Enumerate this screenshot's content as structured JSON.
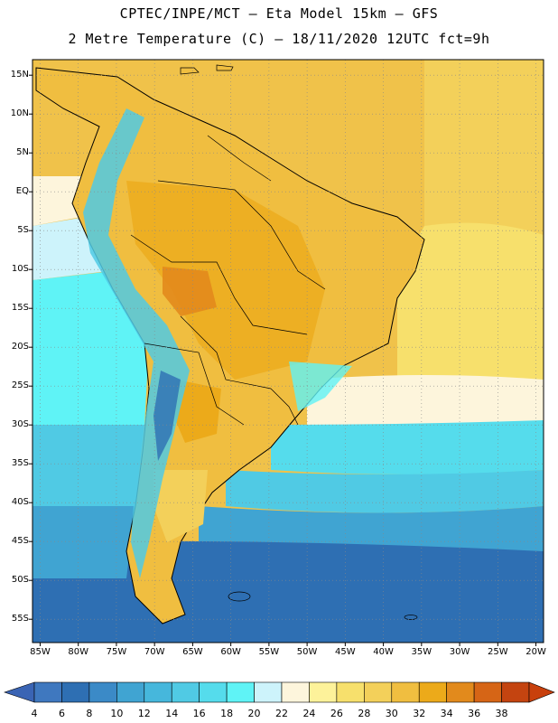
{
  "header": {
    "line1": "CPTEC/INPE/MCT –  Eta Model 15km – GFS",
    "line2": "2 Metre Temperature (C) – 18/11/2020 12UTC fct=9h"
  },
  "map": {
    "lat_labels": [
      "15N",
      "10N",
      "5N",
      "EQ",
      "5S",
      "10S",
      "15S",
      "20S",
      "25S",
      "30S",
      "35S",
      "40S",
      "45S",
      "50S",
      "55S"
    ],
    "lon_labels": [
      "85W",
      "80W",
      "75W",
      "70W",
      "65W",
      "60W",
      "55W",
      "50W",
      "45W",
      "40W",
      "35W",
      "30W",
      "25W",
      "20W"
    ],
    "lat_range": [
      -58,
      17
    ],
    "lon_range": [
      -86,
      -19
    ]
  },
  "legend": {
    "labels": [
      "4",
      "6",
      "8",
      "10",
      "12",
      "14",
      "16",
      "18",
      "20",
      "22",
      "24",
      "26",
      "28",
      "30",
      "32",
      "34",
      "36",
      "38"
    ],
    "colors": [
      "#3f78bf",
      "#2e6fb3",
      "#3b8ac7",
      "#40a4d2",
      "#46b7dc",
      "#50cae4",
      "#55dcec",
      "#5ff3f6",
      "#cdf3fb",
      "#fdf5dc",
      "#fdf29a",
      "#f7e06c",
      "#f3d05a",
      "#f0be40",
      "#ecaa1a",
      "#e28a1c",
      "#d66516",
      "#c44410"
    ],
    "under_color": "#3a64b4",
    "over_color": "#c8400c"
  }
}
